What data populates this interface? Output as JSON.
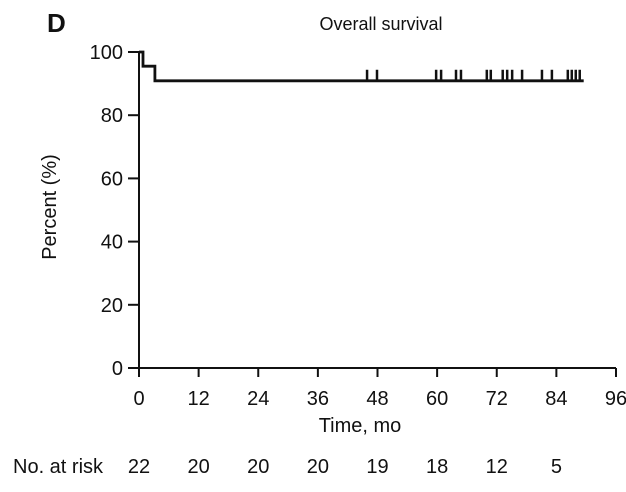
{
  "panel_label": "D",
  "colors": {
    "ink": "#111111",
    "background": "#ffffff"
  },
  "chart_data": {
    "type": "line",
    "subtype": "kaplan-meier-step",
    "title": "Overall survival",
    "xlabel": "Time, mo",
    "ylabel": "Percent (%)",
    "xlim": [
      0,
      96
    ],
    "ylim": [
      0,
      100
    ],
    "x_ticks": [
      0,
      12,
      24,
      36,
      48,
      60,
      72,
      84,
      96
    ],
    "y_ticks": [
      0,
      20,
      40,
      60,
      80,
      100
    ],
    "grid": false,
    "legend": null,
    "series": [
      {
        "name": "Overall survival",
        "color": "#111111",
        "step_points": [
          [
            0,
            100
          ],
          [
            0.8,
            100
          ],
          [
            0.8,
            95.5
          ],
          [
            3.2,
            95.5
          ],
          [
            3.2,
            90.9
          ],
          [
            89.5,
            90.9
          ]
        ],
        "censor_times": [
          45.9,
          47.9,
          59.8,
          60.8,
          63.8,
          64.8,
          70.0,
          70.8,
          73.2,
          74.1,
          75.1,
          77.1,
          81.1,
          83.1,
          86.3,
          87.1,
          87.9,
          88.7
        ],
        "censor_level": 90.9
      }
    ]
  },
  "at_risk": {
    "label": "No. at risk",
    "times": [
      0,
      12,
      24,
      36,
      48,
      60,
      72,
      84
    ],
    "values": [
      22,
      20,
      20,
      20,
      19,
      18,
      12,
      5
    ]
  }
}
